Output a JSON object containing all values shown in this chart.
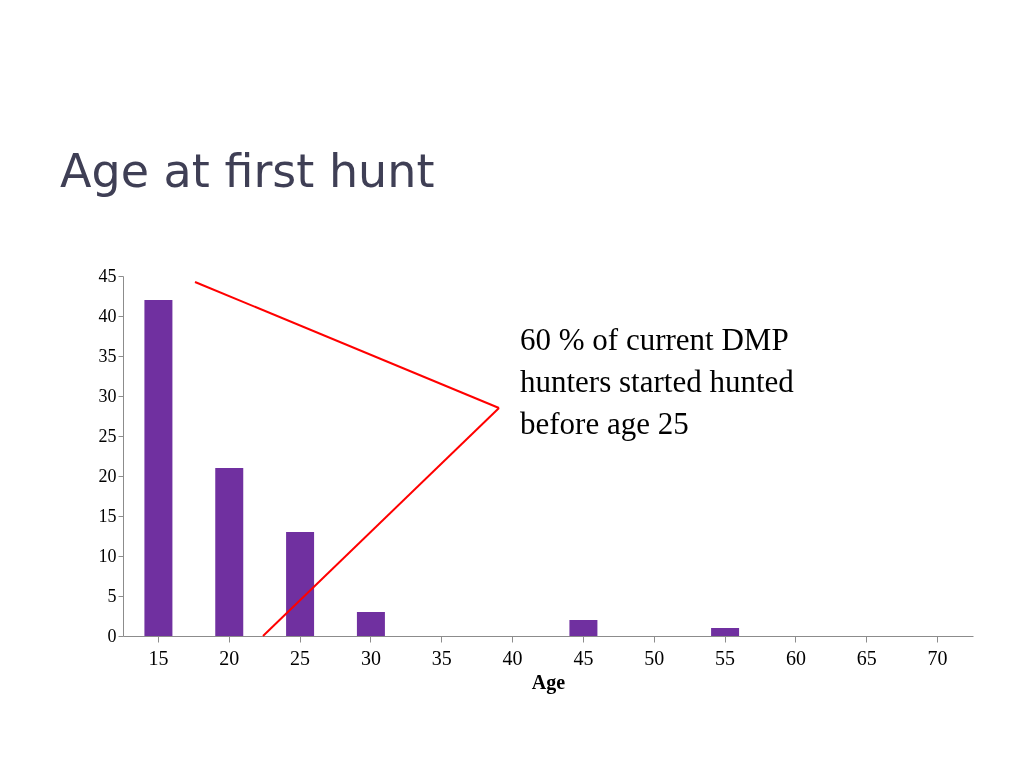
{
  "chart_data": {
    "type": "bar",
    "title": "Age at first hunt",
    "xlabel": "Age",
    "categories": [
      "15",
      "20",
      "25",
      "30",
      "35",
      "40",
      "45",
      "50",
      "55",
      "60",
      "65",
      "70"
    ],
    "values": [
      42,
      21,
      13,
      3,
      0,
      0,
      2,
      0,
      1,
      0,
      0,
      0
    ],
    "color": "#7030a0",
    "ylim": [
      0,
      45
    ],
    "yticks": [
      0,
      5,
      10,
      15,
      20,
      25,
      30,
      35,
      40,
      45
    ],
    "annotations": [
      "60 % of current DMP\nhunters started hunted\nbefore age 25"
    ]
  }
}
